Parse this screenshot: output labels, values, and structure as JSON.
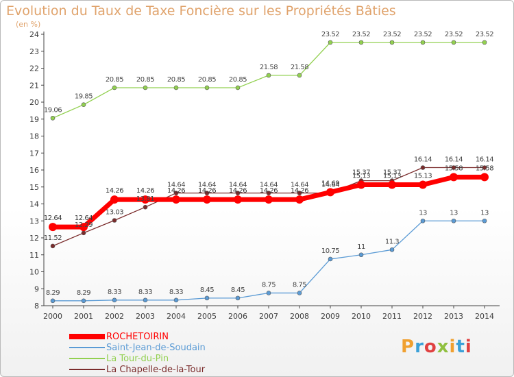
{
  "title": "Evolution du Taux de Taxe Foncière sur les Propriétés Bâties",
  "unit_label": "(en %)",
  "logo": {
    "text": "Proxiti",
    "colors": [
      "#f0a030",
      "#3aa0d8",
      "#e04040",
      "#90c040",
      "#f0a030",
      "#3aa0d8",
      "#e04040"
    ]
  },
  "chart_data": {
    "type": "line",
    "title": "Evolution du Taux de Taxe Foncière sur les Propriétés Bâties",
    "ylabel": "(en %)",
    "xlabel": "",
    "x": [
      "2000",
      "2001",
      "2002",
      "2003",
      "2004",
      "2005",
      "2006",
      "2007",
      "2008",
      "2009",
      "2010",
      "2011",
      "2012",
      "2013",
      "2014"
    ],
    "ylim": [
      8,
      24
    ],
    "yticks": [
      8,
      9,
      10,
      11,
      12,
      13,
      14,
      15,
      16,
      17,
      18,
      19,
      20,
      21,
      22,
      23,
      24
    ],
    "grid": false,
    "legend": "bottom-left",
    "series": [
      {
        "name": "ROCHETOIRIN",
        "color": "#ff0000",
        "values": [
          12.64,
          12.64,
          14.26,
          14.26,
          14.26,
          14.26,
          14.26,
          14.26,
          14.26,
          14.69,
          15.13,
          15.13,
          15.13,
          15.58,
          15.58
        ],
        "labels": [
          "12.64",
          "12.64",
          "14.26",
          "14.26",
          "14.26",
          "14.26",
          "14.26",
          "14.26",
          "14.26",
          "14.69",
          "15.13",
          "15.13",
          "15.13",
          "15.58",
          "15.58"
        ]
      },
      {
        "name": "Saint-Jean-de-Soudain",
        "color": "#5b9bd5",
        "values": [
          8.29,
          8.29,
          8.33,
          8.33,
          8.33,
          8.45,
          8.45,
          8.75,
          8.75,
          10.75,
          11,
          11.3,
          13,
          13,
          13
        ],
        "labels": [
          "8.29",
          "8.29",
          "8.33",
          "8.33",
          "8.33",
          "8.45",
          "8.45",
          "8.75",
          "8.75",
          "10.75",
          "11",
          "11.3",
          "13",
          "13",
          "13"
        ]
      },
      {
        "name": "La Tour-du-Pin",
        "color": "#92d050",
        "values": [
          19.06,
          19.85,
          20.85,
          20.85,
          20.85,
          20.85,
          20.85,
          21.58,
          21.58,
          23.52,
          23.52,
          23.52,
          23.52,
          23.52,
          23.52
        ],
        "labels": [
          "19.06",
          "19.85",
          "20.85",
          "20.85",
          "20.85",
          "20.85",
          "20.85",
          "21.58",
          "21.58",
          "23.52",
          "23.52",
          "23.52",
          "23.52",
          "23.52",
          "23.52"
        ]
      },
      {
        "name": "La Chapelle-de-la-Tour",
        "color": "#7b2c2c",
        "values": [
          11.52,
          12.29,
          13.03,
          13.81,
          14.64,
          14.64,
          14.64,
          14.64,
          14.64,
          14.64,
          15.37,
          15.37,
          16.14,
          16.14,
          16.14
        ],
        "labels": [
          "11.52",
          "12.29",
          "13.03",
          "13.81",
          "14.64",
          "14.64",
          "14.64",
          "14.64",
          "14.64",
          "14.64",
          "15.37",
          "15.37",
          "16.14",
          "16.14",
          "16.14"
        ]
      }
    ]
  }
}
